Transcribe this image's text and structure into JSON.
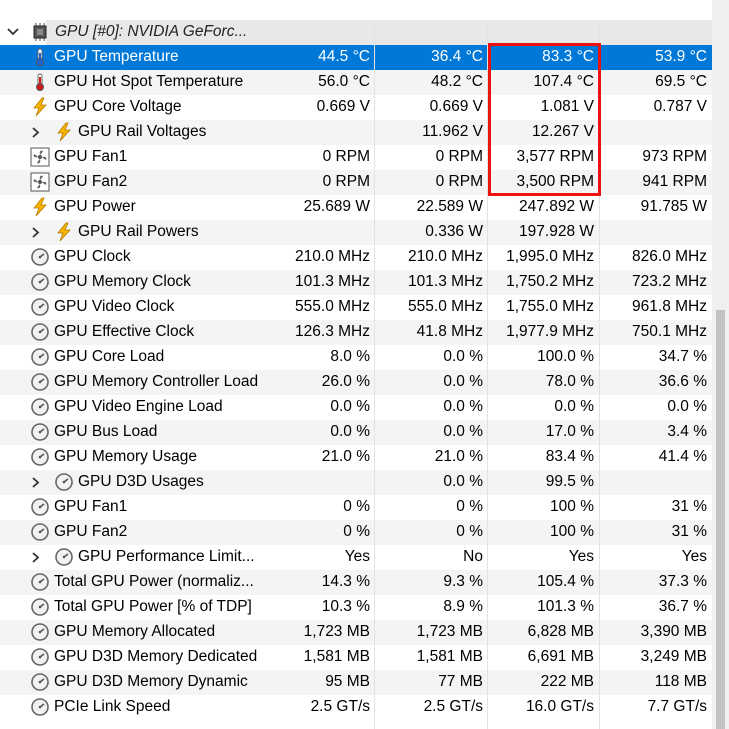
{
  "group": {
    "title": "GPU [#0]: NVIDIA GeForc...",
    "expanded": true
  },
  "colors": {
    "selection": "#0078d7",
    "highlight": "#e11111"
  },
  "highlight_box": {
    "target": "Maximum column, GPU Temperature through GPU Fan2"
  },
  "rows": [
    {
      "label": "GPU Temperature",
      "icon": "thermometer-blue",
      "indent": 0,
      "values": [
        "44.5 °C",
        "36.4 °C",
        "83.3 °C",
        "53.9 °C"
      ],
      "selected": true
    },
    {
      "label": "GPU Hot Spot Temperature",
      "icon": "thermometer-red",
      "indent": 0,
      "values": [
        "56.0 °C",
        "48.2 °C",
        "107.4 °C",
        "69.5 °C"
      ]
    },
    {
      "label": "GPU Core Voltage",
      "icon": "lightning",
      "indent": 0,
      "values": [
        "0.669 V",
        "0.669 V",
        "1.081 V",
        "0.787 V"
      ]
    },
    {
      "label": "GPU Rail Voltages",
      "icon": "lightning",
      "indent": 1,
      "expander": true,
      "values": [
        "",
        "11.962 V",
        "12.267 V",
        ""
      ]
    },
    {
      "label": "GPU Fan1",
      "icon": "fan",
      "indent": 0,
      "values": [
        "0 RPM",
        "0 RPM",
        "3,577 RPM",
        "973 RPM"
      ]
    },
    {
      "label": "GPU Fan2",
      "icon": "fan",
      "indent": 0,
      "values": [
        "0 RPM",
        "0 RPM",
        "3,500 RPM",
        "941 RPM"
      ]
    },
    {
      "label": "GPU Power",
      "icon": "lightning",
      "indent": 0,
      "values": [
        "25.689 W",
        "22.589 W",
        "247.892 W",
        "91.785 W"
      ]
    },
    {
      "label": "GPU Rail Powers",
      "icon": "lightning",
      "indent": 1,
      "expander": true,
      "values": [
        "",
        "0.336 W",
        "197.928 W",
        ""
      ]
    },
    {
      "label": "GPU Clock",
      "icon": "gauge",
      "indent": 0,
      "values": [
        "210.0 MHz",
        "210.0 MHz",
        "1,995.0 MHz",
        "826.0 MHz"
      ]
    },
    {
      "label": "GPU Memory Clock",
      "icon": "gauge",
      "indent": 0,
      "values": [
        "101.3 MHz",
        "101.3 MHz",
        "1,750.2 MHz",
        "723.2 MHz"
      ]
    },
    {
      "label": "GPU Video Clock",
      "icon": "gauge",
      "indent": 0,
      "values": [
        "555.0 MHz",
        "555.0 MHz",
        "1,755.0 MHz",
        "961.8 MHz"
      ]
    },
    {
      "label": "GPU Effective Clock",
      "icon": "gauge",
      "indent": 0,
      "values": [
        "126.3 MHz",
        "41.8 MHz",
        "1,977.9 MHz",
        "750.1 MHz"
      ]
    },
    {
      "label": "GPU Core Load",
      "icon": "gauge",
      "indent": 0,
      "values": [
        "8.0 %",
        "0.0 %",
        "100.0 %",
        "34.7 %"
      ]
    },
    {
      "label": "GPU Memory Controller Load",
      "icon": "gauge",
      "indent": 0,
      "values": [
        "26.0 %",
        "0.0 %",
        "78.0 %",
        "36.6 %"
      ]
    },
    {
      "label": "GPU Video Engine Load",
      "icon": "gauge",
      "indent": 0,
      "values": [
        "0.0 %",
        "0.0 %",
        "0.0 %",
        "0.0 %"
      ]
    },
    {
      "label": "GPU Bus Load",
      "icon": "gauge",
      "indent": 0,
      "values": [
        "0.0 %",
        "0.0 %",
        "17.0 %",
        "3.4 %"
      ]
    },
    {
      "label": "GPU Memory Usage",
      "icon": "gauge",
      "indent": 0,
      "values": [
        "21.0 %",
        "21.0 %",
        "83.4 %",
        "41.4 %"
      ]
    },
    {
      "label": "GPU D3D Usages",
      "icon": "gauge",
      "indent": 1,
      "expander": true,
      "values": [
        "",
        "0.0 %",
        "99.5 %",
        ""
      ]
    },
    {
      "label": "GPU Fan1",
      "icon": "gauge",
      "indent": 0,
      "values": [
        "0 %",
        "0 %",
        "100 %",
        "31 %"
      ]
    },
    {
      "label": "GPU Fan2",
      "icon": "gauge",
      "indent": 0,
      "values": [
        "0 %",
        "0 %",
        "100 %",
        "31 %"
      ]
    },
    {
      "label": "GPU Performance Limit...",
      "icon": "gauge",
      "indent": 1,
      "expander": true,
      "values": [
        "Yes",
        "No",
        "Yes",
        "Yes"
      ]
    },
    {
      "label": "Total GPU Power (normaliz...",
      "icon": "gauge",
      "indent": 0,
      "values": [
        "14.3 %",
        "9.3 %",
        "105.4 %",
        "37.3 %"
      ]
    },
    {
      "label": "Total GPU Power [% of TDP]",
      "icon": "gauge",
      "indent": 0,
      "values": [
        "10.3 %",
        "8.9 %",
        "101.3 %",
        "36.7 %"
      ]
    },
    {
      "label": "GPU Memory Allocated",
      "icon": "gauge",
      "indent": 0,
      "values": [
        "1,723 MB",
        "1,723 MB",
        "6,828 MB",
        "3,390 MB"
      ]
    },
    {
      "label": "GPU D3D Memory Dedicated",
      "icon": "gauge",
      "indent": 0,
      "values": [
        "1,581 MB",
        "1,581 MB",
        "6,691 MB",
        "3,249 MB"
      ]
    },
    {
      "label": "GPU D3D Memory Dynamic",
      "icon": "gauge",
      "indent": 0,
      "values": [
        "95 MB",
        "77 MB",
        "222 MB",
        "118 MB"
      ]
    },
    {
      "label": "PCIe Link Speed",
      "icon": "gauge",
      "indent": 0,
      "values": [
        "2.5 GT/s",
        "2.5 GT/s",
        "16.0 GT/s",
        "7.7 GT/s"
      ]
    }
  ]
}
